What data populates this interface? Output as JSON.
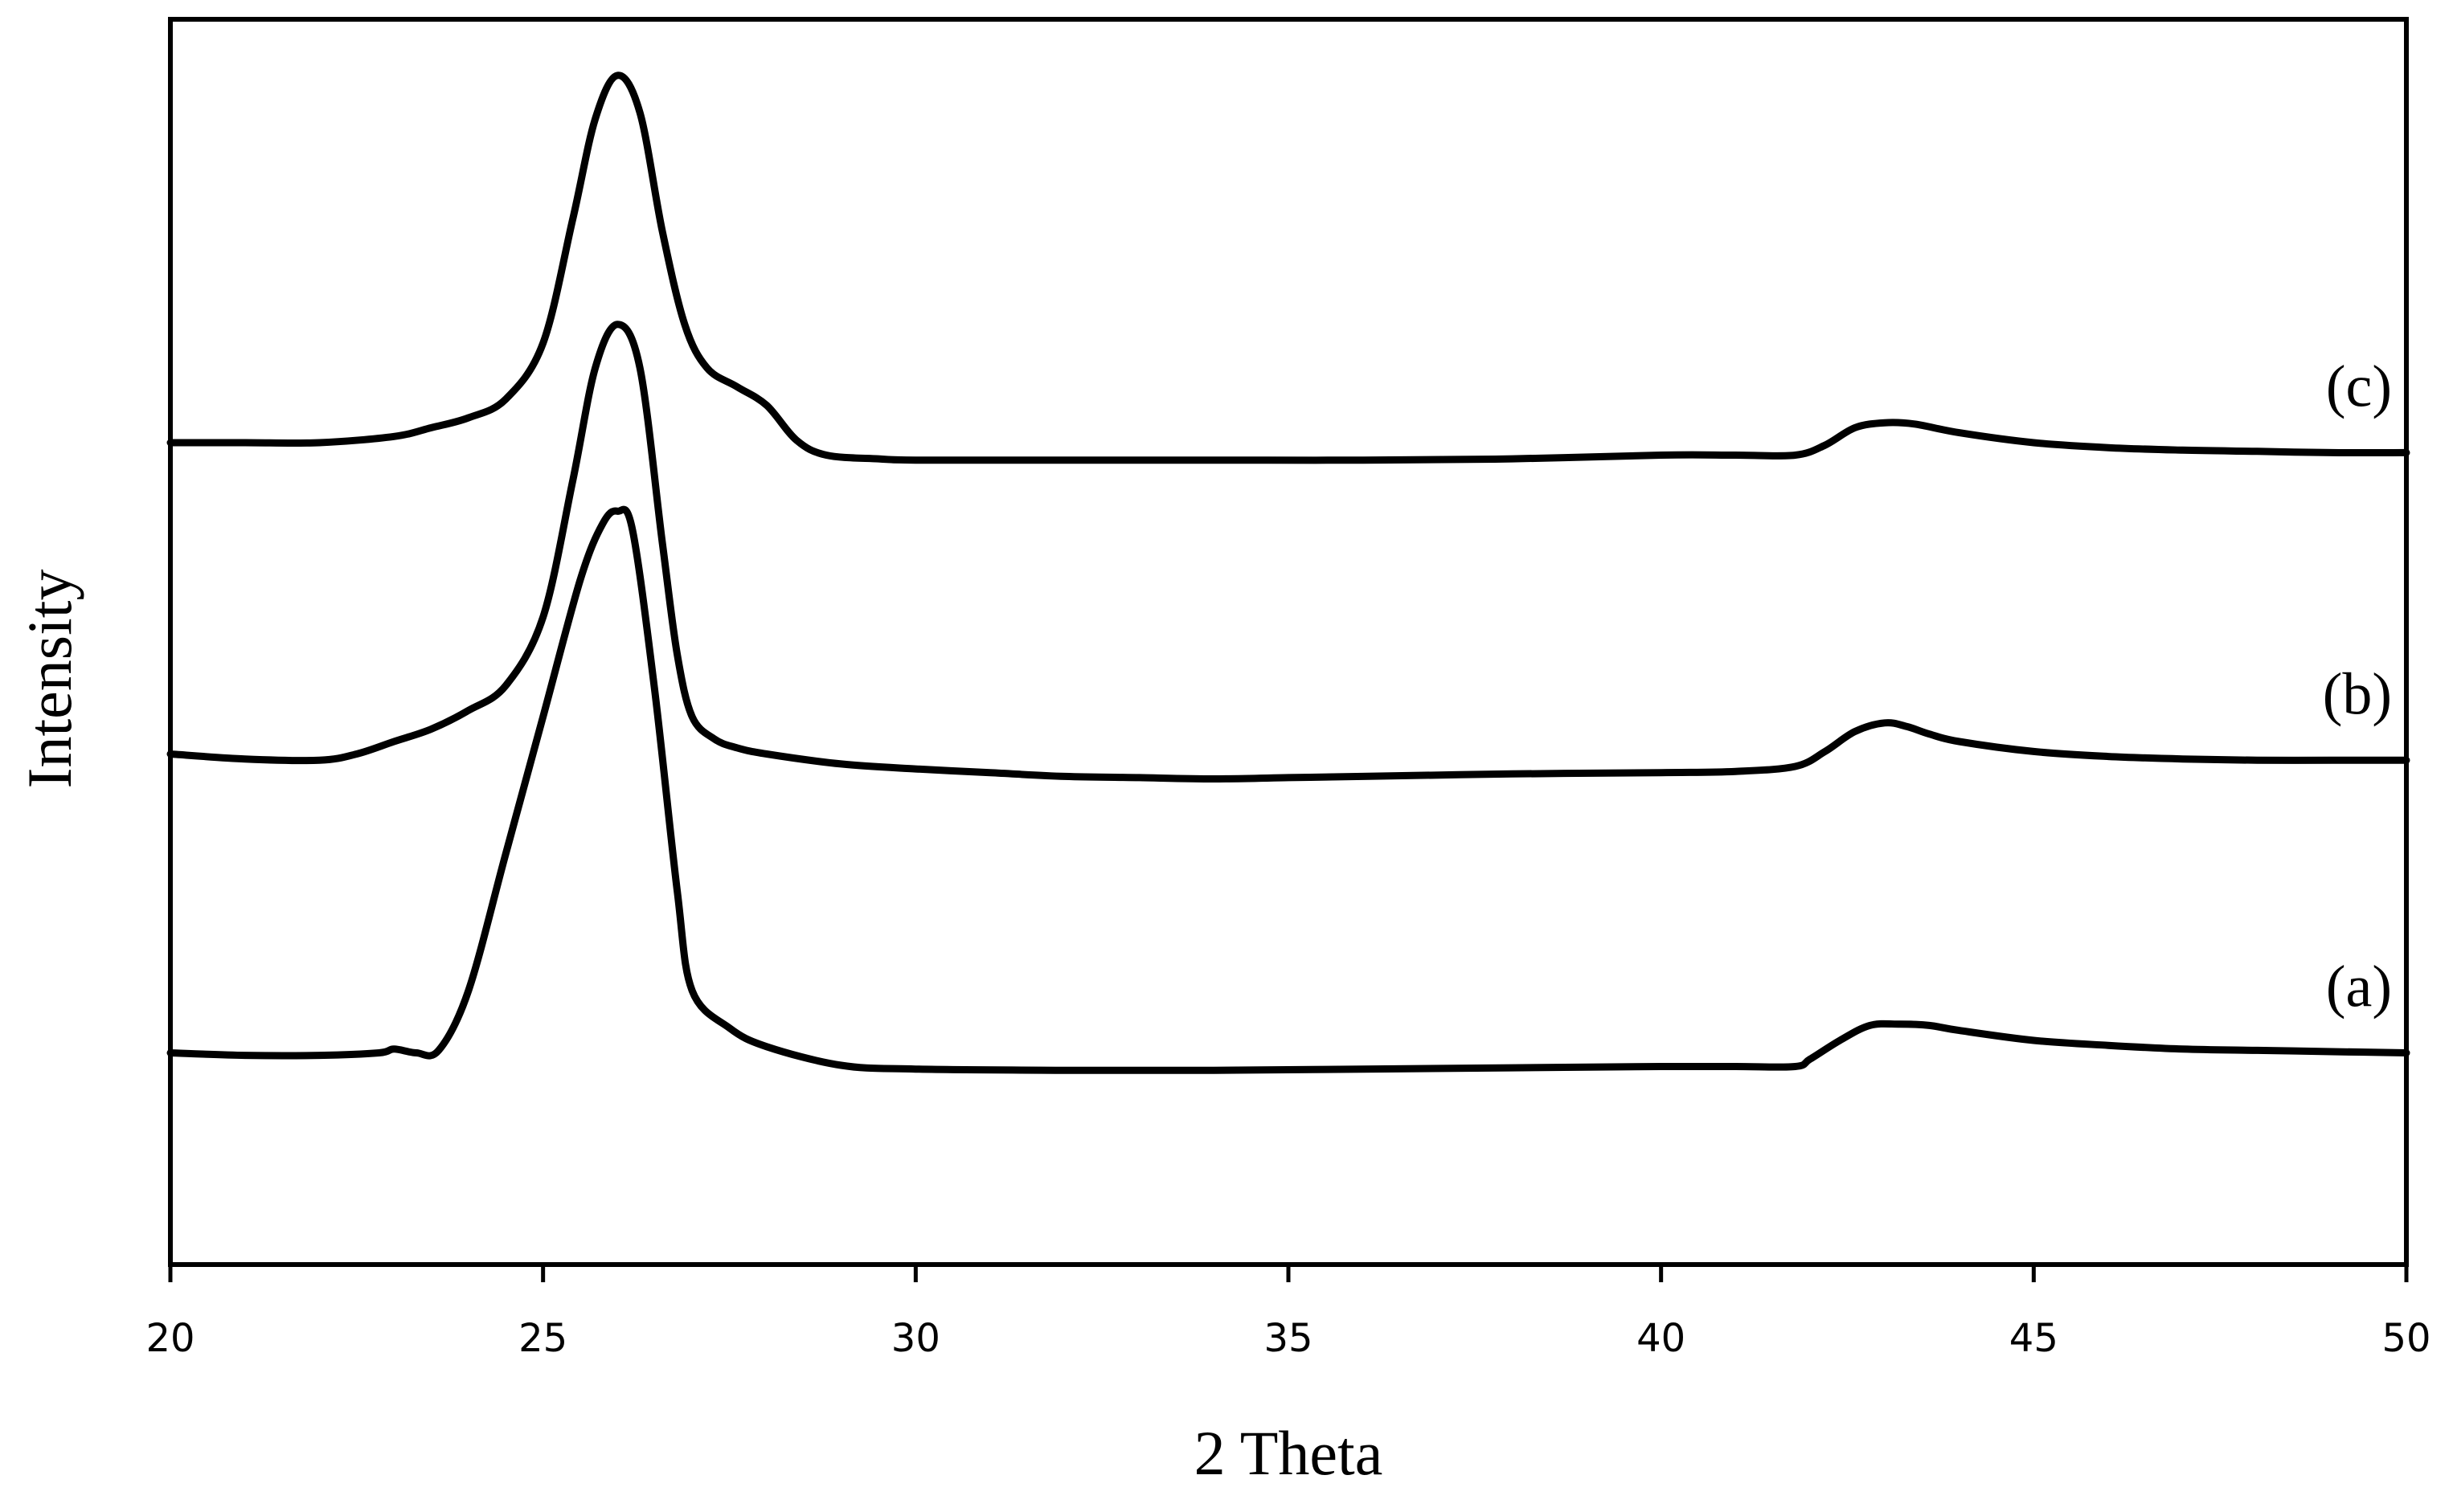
{
  "chart_data": {
    "type": "line",
    "xlabel": "2 Theta",
    "ylabel": "Intensity",
    "xlim": [
      20,
      50
    ],
    "ylim": [
      0,
      10
    ],
    "xticks": [
      "20",
      "25",
      "30",
      "35",
      "40",
      "45",
      "50"
    ],
    "yticks_shown": false,
    "grid": false,
    "series": [
      {
        "name": "(a)",
        "x": [
          20,
          21,
          22,
          22.8,
          23.0,
          23.3,
          23.6,
          24.0,
          24.5,
          25.0,
          25.5,
          25.8,
          26.0,
          26.2,
          26.5,
          26.8,
          27.0,
          27.5,
          28.0,
          29,
          30,
          32,
          34,
          36,
          38,
          40,
          41,
          41.8,
          42.0,
          42.4,
          42.8,
          43.2,
          43.6,
          44,
          45,
          46,
          47,
          48,
          49,
          50
        ],
        "y": [
          1.7,
          1.68,
          1.68,
          1.7,
          1.73,
          1.7,
          1.72,
          2.2,
          3.3,
          4.4,
          5.5,
          5.95,
          6.05,
          5.9,
          4.6,
          3.0,
          2.2,
          1.9,
          1.75,
          1.6,
          1.57,
          1.56,
          1.56,
          1.57,
          1.58,
          1.59,
          1.59,
          1.59,
          1.65,
          1.8,
          1.92,
          1.93,
          1.92,
          1.88,
          1.8,
          1.76,
          1.73,
          1.72,
          1.71,
          1.7
        ]
      },
      {
        "name": "(b)",
        "x": [
          20,
          21,
          22,
          22.5,
          23,
          23.5,
          24.0,
          24.5,
          25.0,
          25.4,
          25.7,
          26.0,
          26.3,
          26.6,
          26.8,
          27.0,
          27.3,
          27.6,
          28,
          29,
          30,
          31,
          32,
          33,
          34,
          35,
          36,
          38,
          40,
          41,
          41.8,
          42.2,
          42.6,
          43.0,
          43.3,
          43.6,
          44,
          45,
          46,
          47,
          48,
          49,
          50
        ],
        "y": [
          4.1,
          4.06,
          4.05,
          4.1,
          4.2,
          4.3,
          4.45,
          4.65,
          5.2,
          6.3,
          7.2,
          7.55,
          7.2,
          5.8,
          4.9,
          4.4,
          4.22,
          4.15,
          4.1,
          4.02,
          3.98,
          3.95,
          3.92,
          3.91,
          3.9,
          3.91,
          3.92,
          3.94,
          3.95,
          3.96,
          4.0,
          4.12,
          4.28,
          4.35,
          4.32,
          4.26,
          4.2,
          4.12,
          4.08,
          4.06,
          4.05,
          4.05,
          4.05
        ]
      },
      {
        "name": "(c)",
        "x": [
          20,
          21,
          22,
          23,
          23.5,
          24.0,
          24.5,
          25.0,
          25.4,
          25.7,
          26.0,
          26.3,
          26.6,
          26.9,
          27.2,
          27.6,
          28.0,
          28.4,
          28.8,
          29.5,
          30,
          32,
          34,
          36,
          38,
          40,
          41,
          41.8,
          42.2,
          42.6,
          43.0,
          43.4,
          44,
          45,
          46,
          47,
          48,
          49,
          50
        ],
        "y": [
          6.6,
          6.6,
          6.6,
          6.65,
          6.72,
          6.8,
          6.95,
          7.4,
          8.4,
          9.2,
          9.55,
          9.25,
          8.3,
          7.55,
          7.2,
          7.05,
          6.9,
          6.62,
          6.5,
          6.47,
          6.46,
          6.46,
          6.46,
          6.46,
          6.47,
          6.5,
          6.5,
          6.5,
          6.58,
          6.72,
          6.76,
          6.75,
          6.68,
          6.6,
          6.56,
          6.54,
          6.53,
          6.52,
          6.52
        ]
      }
    ]
  }
}
